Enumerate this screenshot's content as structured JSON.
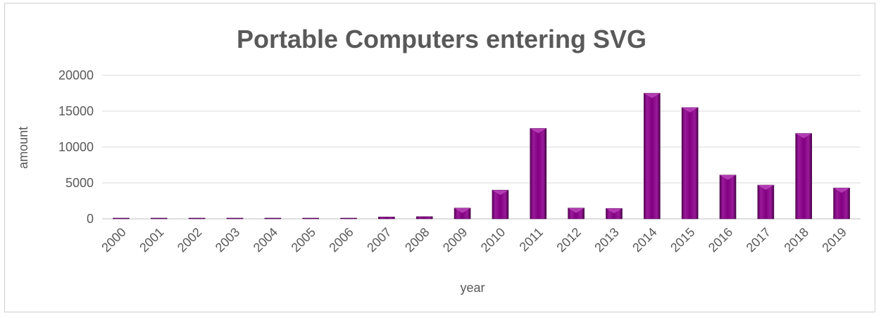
{
  "chart_data": {
    "type": "bar",
    "title": "Portable Computers entering SVG",
    "xlabel": "year",
    "ylabel": "amount",
    "ylim": [
      0,
      20000
    ],
    "yticks": [
      0,
      5000,
      10000,
      15000,
      20000
    ],
    "grid": true,
    "legend": "none",
    "bar_color": "#800080",
    "categories": [
      "2000",
      "2001",
      "2002",
      "2003",
      "2004",
      "2005",
      "2006",
      "2007",
      "2008",
      "2009",
      "2010",
      "2011",
      "2012",
      "2013",
      "2014",
      "2015",
      "2016",
      "2017",
      "2018",
      "2019"
    ],
    "values": [
      5,
      5,
      5,
      5,
      5,
      10,
      80,
      250,
      300,
      1500,
      4000,
      12600,
      1500,
      1450,
      17500,
      15500,
      6100,
      4700,
      11900,
      4300
    ]
  }
}
